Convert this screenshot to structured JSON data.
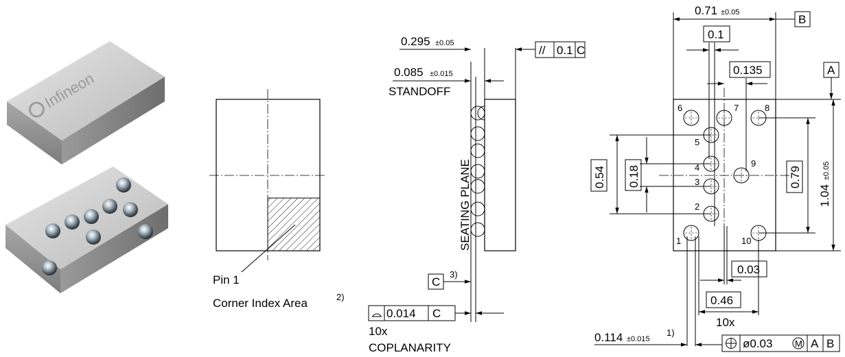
{
  "brand": {
    "logo_text": "Infineon"
  },
  "pin1": {
    "label_line1": "Pin 1",
    "label_line2": "Corner Index Area",
    "footnote": "2)"
  },
  "side_view": {
    "thickness_dim": "0.295",
    "thickness_tol": "±0.05",
    "parallel_symbol": "//",
    "parallel_value": "0.1",
    "parallel_datum": "C",
    "standoff_dim": "0.085",
    "standoff_tol": "±0.015",
    "standoff_label": "STANDOFF",
    "seating_plane": "SEATING PLANE",
    "datum_c": "C",
    "datum_c_note": "3)",
    "coplanarity_value": "0.014",
    "coplanarity_datum": "C",
    "coplanarity_count": "10x",
    "coplanarity_label": "COPLANARITY"
  },
  "bottom_view": {
    "width_dim": "0.71",
    "width_tol": "±0.05",
    "datum_b": "B",
    "datum_a": "A",
    "dim_01": "0.1",
    "dim_0135": "0.135",
    "dim_054": "0.54",
    "dim_018": "0.18",
    "dim_079": "0.79",
    "height_dim": "1.04",
    "height_tol": "±0.05",
    "dim_003": "0.03",
    "dim_046": "0.46",
    "ball_count": "10x",
    "ball_dim": "0.114",
    "ball_tol": "±0.015",
    "ball_note": "1)",
    "position_tol": "ø0.03",
    "mmc_symbol": "M",
    "pos_datum_a": "A",
    "pos_datum_b": "B",
    "pins": [
      "1",
      "2",
      "3",
      "4",
      "5",
      "6",
      "7",
      "8",
      "9",
      "10"
    ]
  }
}
